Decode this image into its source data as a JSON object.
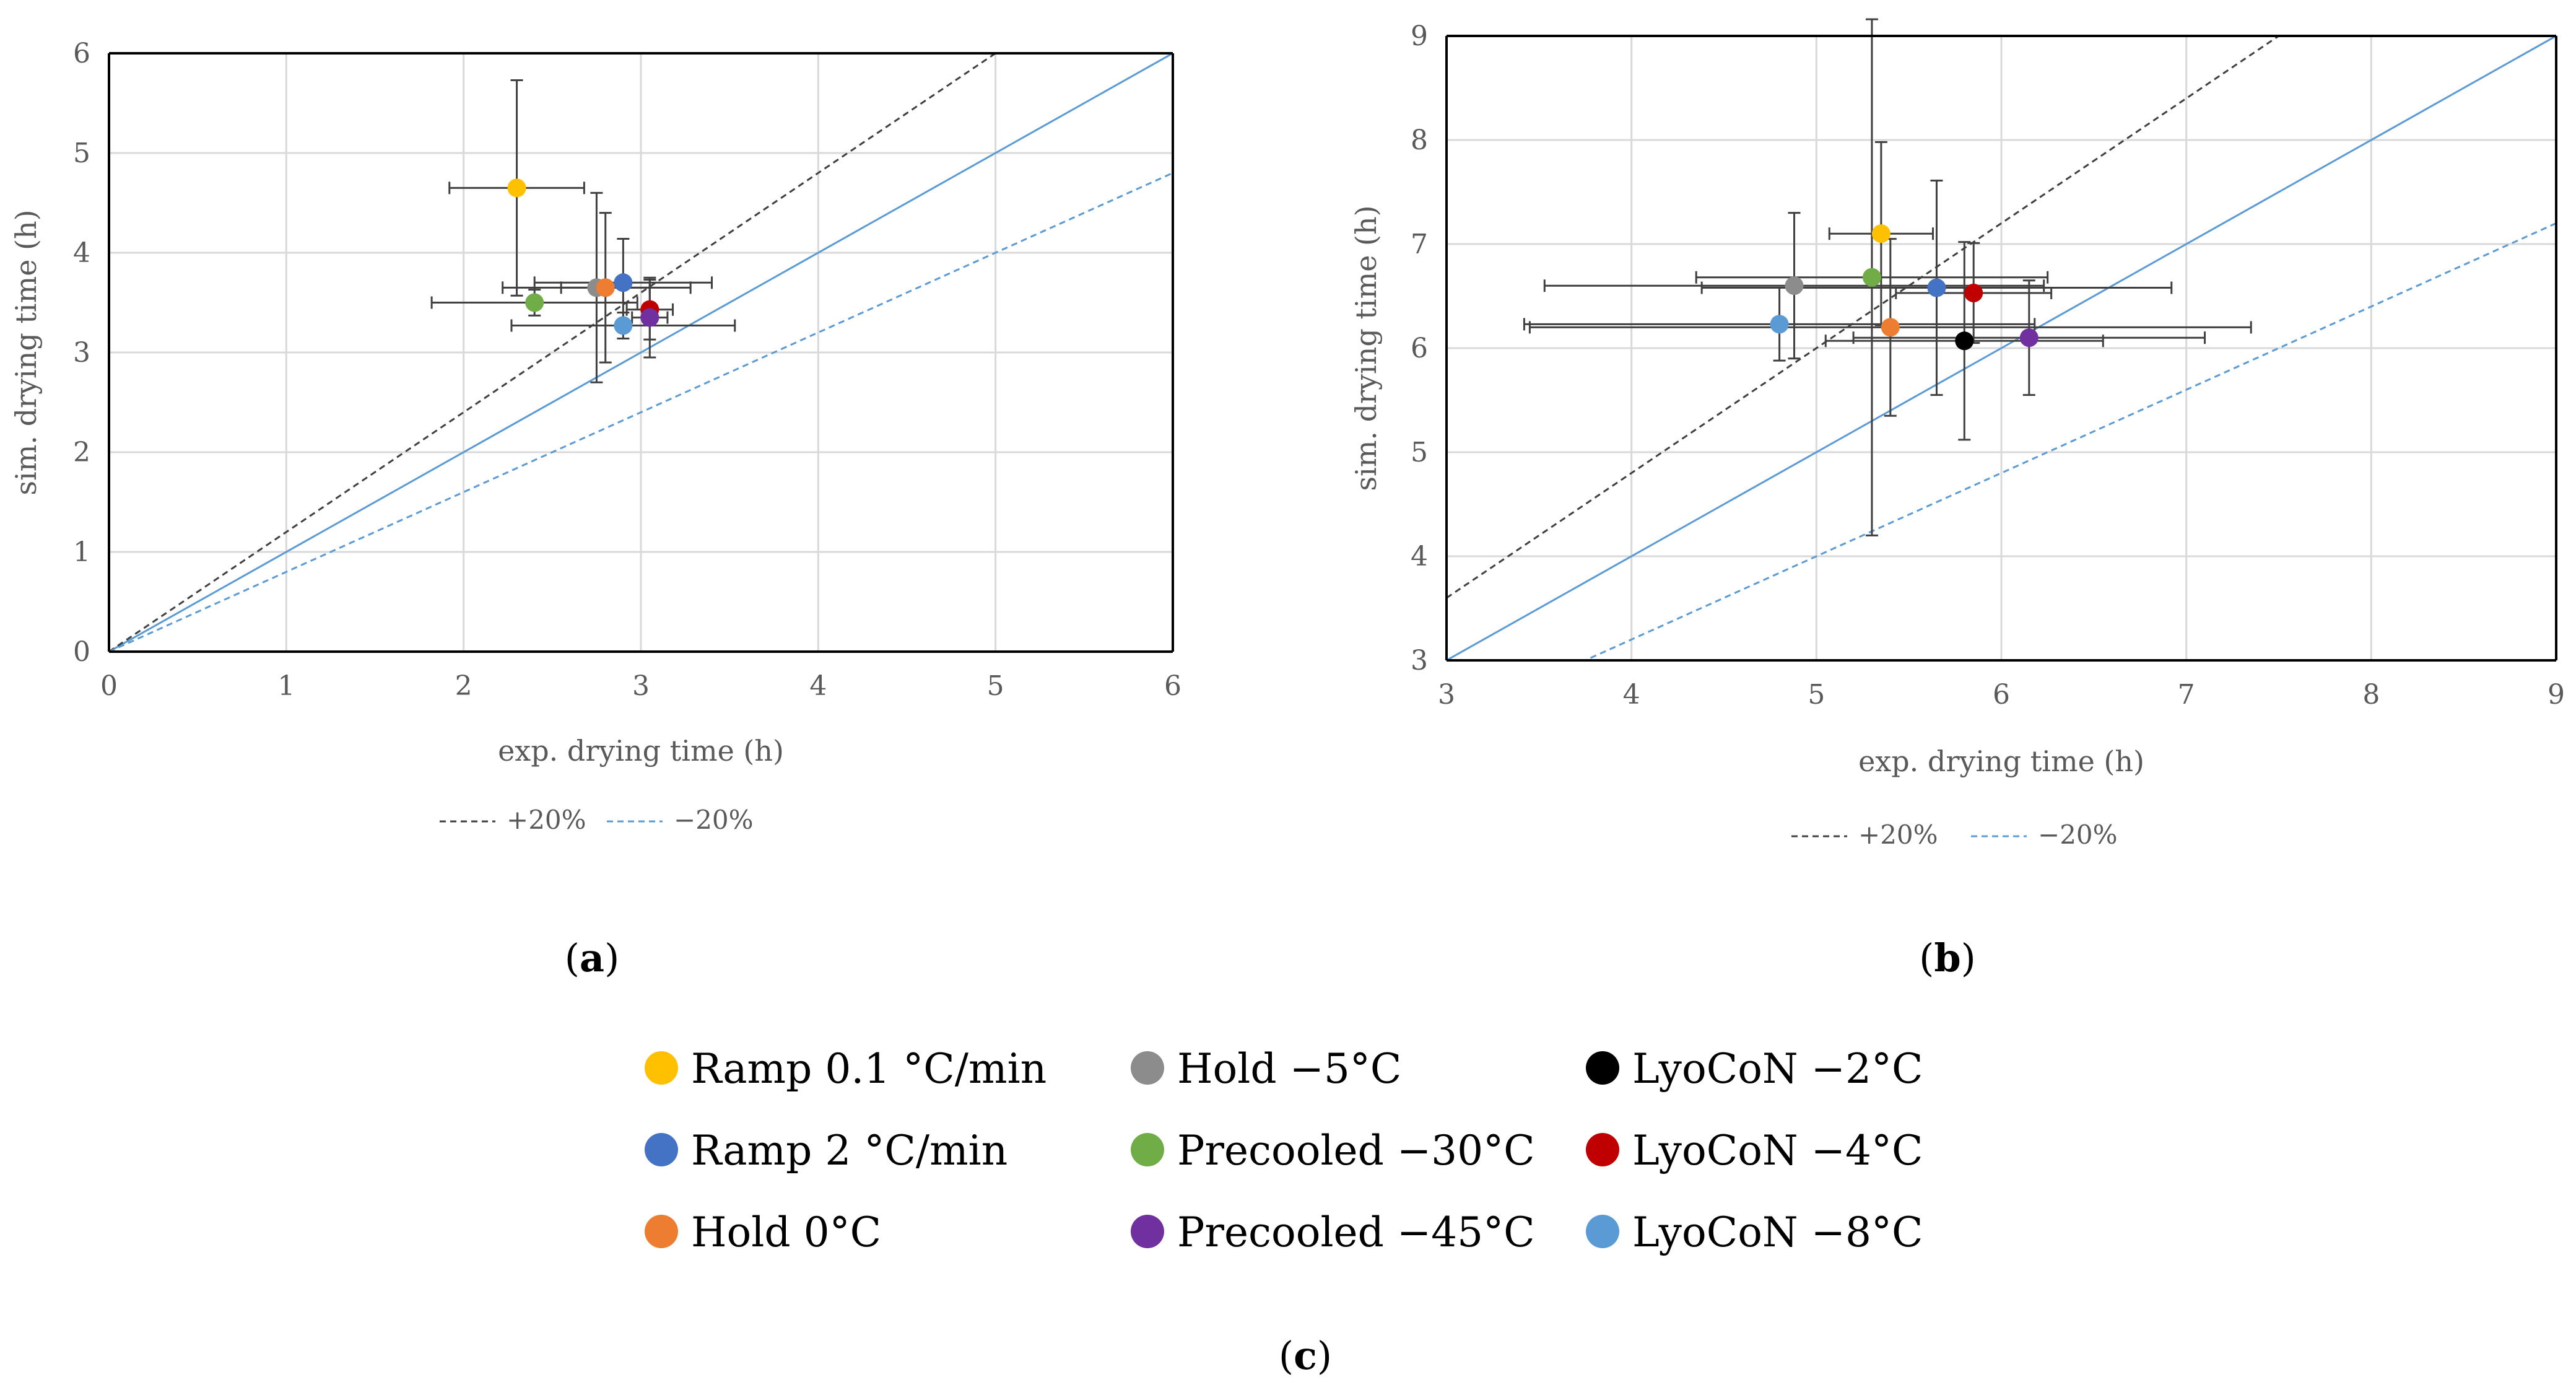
{
  "chart_data": [
    {
      "panel": "a",
      "type": "scatter",
      "xlabel": "exp. drying time (h)",
      "ylabel": "sim. drying time (h)",
      "xlim": [
        0,
        6
      ],
      "ylim": [
        0,
        6
      ],
      "xticks": [
        "0",
        "1",
        "2",
        "3",
        "4",
        "5",
        "6"
      ],
      "yticks": [
        "0",
        "1",
        "2",
        "3",
        "4",
        "5",
        "6"
      ],
      "grid": true,
      "reference_lines": [
        {
          "name": "identity",
          "slope": 1.0,
          "style": "solid",
          "color": "#5b9bd5"
        },
        {
          "name": "+20%",
          "slope": 1.2,
          "style": "dashed",
          "color": "#404040"
        },
        {
          "name": "−20%",
          "slope": 0.8,
          "style": "dashed",
          "color": "#5b9bd5"
        }
      ],
      "legend": [
        "+20%",
        "−20%"
      ],
      "points": [
        {
          "series": "Ramp 0.1 °C/min",
          "x": 2.3,
          "y": 4.65,
          "xerr": 0.38,
          "yerr": 1.08
        },
        {
          "series": "Hold −5°C",
          "x": 2.75,
          "y": 3.65,
          "xerr": 0.53,
          "yerr": 0.95
        },
        {
          "series": "Hold 0°C",
          "x": 2.8,
          "y": 3.65,
          "xerr": 0.25,
          "yerr": 0.75
        },
        {
          "series": "Precooled −30°C",
          "x": 2.4,
          "y": 3.5,
          "xerr": 0.58,
          "yerr": 0.13
        },
        {
          "series": "Ramp 2 °C/min",
          "x": 2.9,
          "y": 3.7,
          "xerr": 0.5,
          "yerr": 0.44
        },
        {
          "series": "LyoCoN −4°C",
          "x": 3.05,
          "y": 3.43,
          "xerr": 0.13,
          "yerr": 0.3
        },
        {
          "series": "Precooled −45°C",
          "x": 3.05,
          "y": 3.35,
          "xerr": 0.1,
          "yerr": 0.4
        },
        {
          "series": "LyoCoN −8°C",
          "x": 2.9,
          "y": 3.27,
          "xerr": 0.63,
          "yerr": 0.13
        }
      ]
    },
    {
      "panel": "b",
      "type": "scatter",
      "xlabel": "exp. drying time (h)",
      "ylabel": "sim. drying time (h)",
      "xlim": [
        3,
        9
      ],
      "ylim": [
        3,
        9
      ],
      "xticks": [
        "3",
        "4",
        "5",
        "6",
        "7",
        "8",
        "9"
      ],
      "yticks": [
        "3",
        "4",
        "5",
        "6",
        "7",
        "8",
        "9"
      ],
      "grid": true,
      "reference_lines": [
        {
          "name": "identity",
          "slope": 1.0,
          "style": "solid",
          "color": "#5b9bd5"
        },
        {
          "name": "+20%",
          "slope": 1.2,
          "style": "dashed",
          "color": "#404040"
        },
        {
          "name": "−20%",
          "slope": 0.8,
          "style": "dashed",
          "color": "#5b9bd5"
        }
      ],
      "legend": [
        "+20%",
        "−20%"
      ],
      "points": [
        {
          "series": "Ramp 0.1 °C/min",
          "x": 5.35,
          "y": 7.1,
          "xerr": 0.28,
          "yerr": 0.88
        },
        {
          "series": "Hold −5°C",
          "x": 4.88,
          "y": 6.6,
          "xerr": 1.35,
          "yerr": 0.7
        },
        {
          "series": "Precooled −30°C",
          "x": 5.3,
          "y": 6.68,
          "xerr": 0.95,
          "yerr": 2.48
        },
        {
          "series": "Ramp 2 °C/min",
          "x": 5.65,
          "y": 6.58,
          "xerr": 1.27,
          "yerr": 1.03
        },
        {
          "series": "LyoCoN −4°C",
          "x": 5.85,
          "y": 6.53,
          "xerr": 0.42,
          "yerr": 0.48
        },
        {
          "series": "LyoCoN −8°C",
          "x": 4.8,
          "y": 6.23,
          "xerr": 1.38,
          "yerr": 0.35
        },
        {
          "series": "Hold 0°C",
          "x": 5.4,
          "y": 6.2,
          "xerr": 1.95,
          "yerr": 0.85
        },
        {
          "series": "LyoCoN −2°C",
          "x": 5.8,
          "y": 6.07,
          "xerr": 0.75,
          "yerr": 0.95
        },
        {
          "series": "Precooled −45°C",
          "x": 6.15,
          "y": 6.1,
          "xerr": 0.95,
          "yerr": 0.55
        }
      ]
    }
  ],
  "series_colors": {
    "Ramp 0.1 °C/min": "#ffc000",
    "Ramp 2 °C/min": "#4472c4",
    "Hold 0°C": "#ed7d31",
    "Hold −5°C": "#8c8c8c",
    "Precooled −30°C": "#70ad47",
    "Precooled −45°C": "#7030a0",
    "LyoCoN −2°C": "#000000",
    "LyoCoN −4°C": "#c00000",
    "LyoCoN −8°C": "#5b9bd5"
  },
  "panel_labels": {
    "a": "a",
    "b": "b",
    "c": "c"
  },
  "legend_c": {
    "columns": [
      [
        "Ramp 0.1 °C/min",
        "Ramp 2 °C/min",
        "Hold 0°C"
      ],
      [
        "Hold −5°C",
        "Precooled −30°C",
        "Precooled −45°C"
      ],
      [
        "LyoCoN −2°C",
        "LyoCoN −4°C",
        "LyoCoN −8°C"
      ]
    ]
  }
}
